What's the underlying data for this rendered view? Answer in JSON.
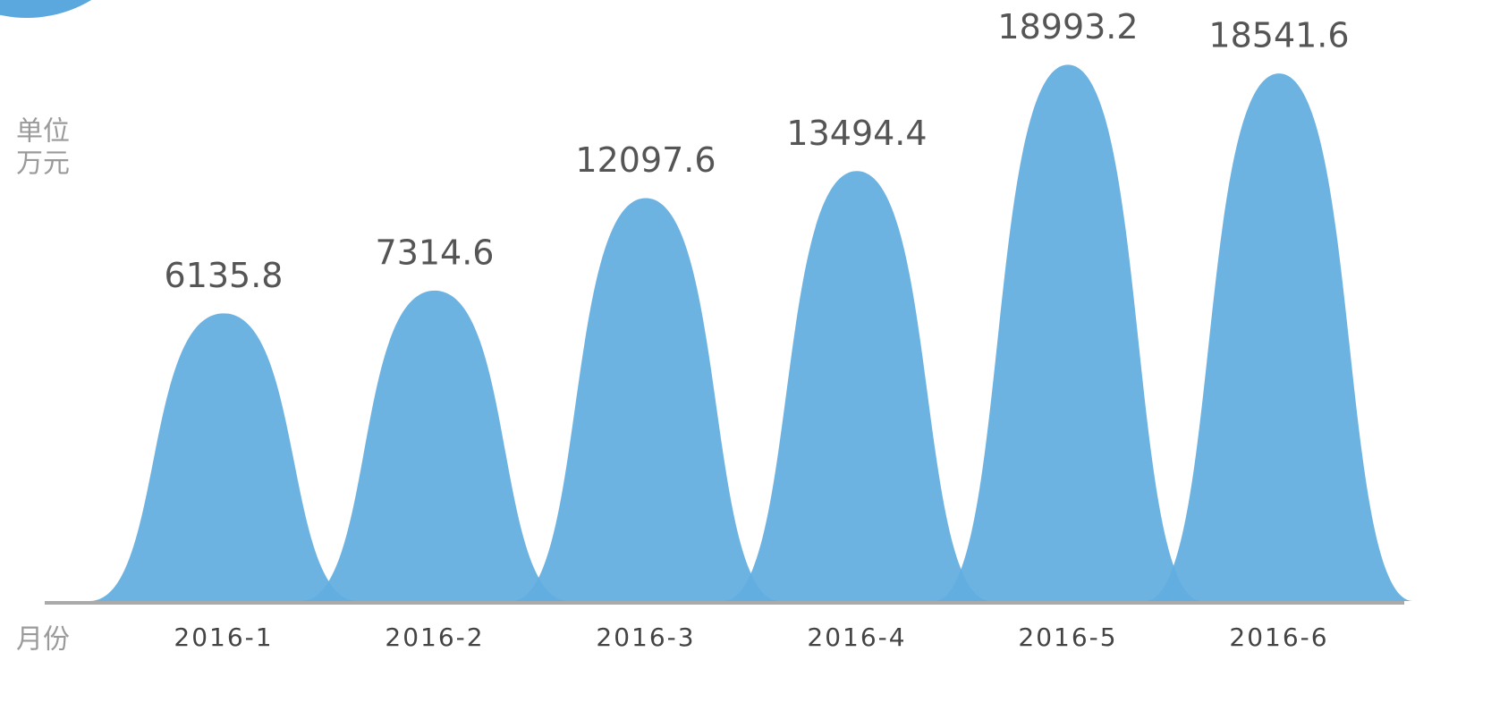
{
  "chart_data": {
    "type": "bell",
    "y_label": [
      "单位",
      "万元"
    ],
    "x_label": "月份",
    "categories": [
      "2016-1",
      "2016-2",
      "2016-3",
      "2016-4",
      "2016-5",
      "2016-6"
    ],
    "values": [
      6135.8,
      7314.6,
      12097.6,
      13494.4,
      18993.2,
      18541.6
    ],
    "color": "#62ade0"
  }
}
